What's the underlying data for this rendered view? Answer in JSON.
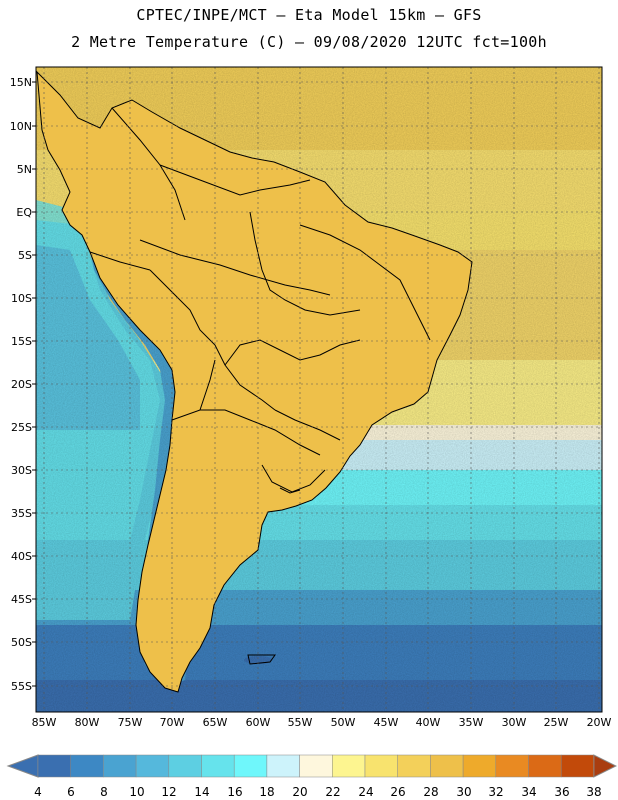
{
  "header": {
    "line1": "CPTEC/INPE/MCT –  Eta Model 15km – GFS",
    "line2": "2 Metre Temperature (C) – 09/08/2020 12UTC fct=100h"
  },
  "map": {
    "lat_labels": [
      "15N",
      "10N",
      "5N",
      "EQ",
      "5S",
      "10S",
      "15S",
      "20S",
      "25S",
      "30S",
      "35S",
      "40S",
      "45S",
      "50S",
      "55S"
    ],
    "lon_labels": [
      "85W",
      "80W",
      "75W",
      "70W",
      "65W",
      "60W",
      "55W",
      "50W",
      "45W",
      "40W",
      "35W",
      "30W",
      "25W",
      "20W"
    ]
  },
  "colorbar": {
    "values": [
      "4",
      "6",
      "8",
      "10",
      "12",
      "14",
      "16",
      "18",
      "20",
      "22",
      "24",
      "26",
      "28",
      "30",
      "32",
      "34",
      "36",
      "38"
    ],
    "colors": [
      "#3a6fb0",
      "#3d88c4",
      "#4aa3d1",
      "#55b8dc",
      "#5dcfe2",
      "#66e3ec",
      "#6ff7fb",
      "#cdf3fb",
      "#fef7dd",
      "#fdf590",
      "#f8e36e",
      "#f3d05a",
      "#eec04a",
      "#eeaa2b",
      "#e98a22",
      "#db6a16",
      "#c24a0a",
      "#a93d10"
    ]
  }
}
